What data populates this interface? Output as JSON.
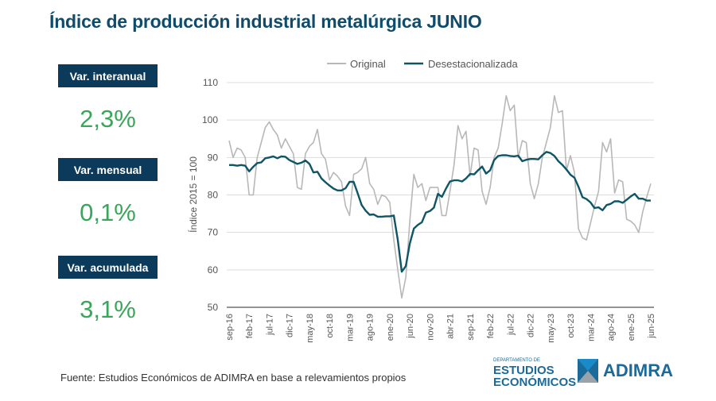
{
  "title": "Índice de producción industrial metalúrgica JUNIO",
  "kpis": [
    {
      "label": "Var. interanual",
      "value": "2,3%"
    },
    {
      "label": "Var. mensual",
      "value": "0,1%"
    },
    {
      "label": "Var. acumulada",
      "value": "3,1%"
    }
  ],
  "source": "Fuente: Estudios Económicos de ADIMRA en base a relevamientos propios",
  "logos": {
    "dept_small": "DEPARTAMENTO DE",
    "dept_line1": "ESTUDIOS",
    "dept_line2": "ECONÓMICOS",
    "brand": "ADIMRA"
  },
  "colors": {
    "original": "#b8b8b8",
    "desestacionalizada": "#0e5566",
    "accent": "#3aa65a",
    "box": "#0c3a5a"
  },
  "chart_data": {
    "type": "line",
    "title": "",
    "ylabel": "Índice 2015 = 100",
    "xlabel": "",
    "ylim": [
      50,
      110
    ],
    "yticks": [
      50,
      60,
      70,
      80,
      90,
      100,
      110
    ],
    "grid": true,
    "legend": "top",
    "x_start": "sep-16",
    "x_end": "jun-25",
    "xtick_labels": [
      "sep-16",
      "feb-17",
      "jul-17",
      "dic-17",
      "may-18",
      "oct-18",
      "mar-19",
      "ago-19",
      "ene-20",
      "jun-20",
      "nov-20",
      "abr-21",
      "sep-21",
      "feb-22",
      "jul-22",
      "dic-22",
      "may-23",
      "oct-23",
      "mar-24",
      "ago-24",
      "ene-25",
      "jun-25"
    ],
    "series": [
      {
        "name": "Original",
        "values": [
          94.5,
          90,
          92.5,
          92,
          90,
          80,
          80,
          90,
          94,
          98,
          99.5,
          97.5,
          96,
          92.5,
          95,
          93,
          91,
          82,
          81.5,
          91,
          93,
          94,
          97.5,
          91,
          89.5,
          84,
          86,
          85,
          83.5,
          77,
          74.5,
          85.5,
          86,
          87,
          90,
          83,
          81.5,
          77.5,
          80,
          79.5,
          78,
          68,
          60,
          52.5,
          58,
          73,
          85.5,
          82,
          83,
          78.5,
          82,
          82,
          82,
          74.5,
          74.5,
          81,
          88,
          98.5,
          95,
          97,
          85,
          92.5,
          92,
          81,
          77.5,
          82,
          90,
          92.5,
          99,
          106.5,
          102.5,
          104,
          90,
          94.5,
          94,
          83,
          79,
          83,
          90,
          94,
          98,
          106.5,
          102,
          102.5,
          86.5,
          90.5,
          86,
          71,
          68.5,
          68,
          72.5,
          77,
          81,
          94,
          91.5,
          95,
          80.5,
          84,
          83.5,
          73.5,
          73,
          72,
          70,
          75.5,
          79.5,
          83
        ]
      },
      {
        "name": "Desestacionalizada",
        "values": [
          88,
          88,
          87.8,
          88,
          87.8,
          86.3,
          87.5,
          88.5,
          88.7,
          89.8,
          90,
          90.3,
          89.8,
          90.3,
          90.2,
          89.3,
          88.8,
          88.3,
          88.6,
          89.2,
          88.3,
          86,
          86.2,
          84.4,
          83.4,
          82.5,
          81.7,
          81.2,
          81.2,
          81.8,
          83.5,
          83.5,
          80.5,
          77.3,
          75.8,
          74.7,
          74.8,
          74.2,
          74.2,
          74.3,
          74.3,
          74.5,
          68,
          59.5,
          61,
          67,
          71,
          72,
          72.7,
          75.3,
          75.7,
          76.6,
          80.3,
          79.5,
          81.7,
          83.6,
          83.9,
          83.9,
          83.6,
          84.4,
          85.6,
          85.5,
          86.6,
          87.6,
          85.7,
          86.6,
          89.3,
          90.4,
          90.6,
          90.6,
          90.4,
          90.3,
          90.5,
          89,
          89.4,
          89.6,
          89.6,
          89.5,
          90.6,
          91.5,
          91.2,
          90.4,
          89,
          88,
          86.8,
          85.4,
          84.6,
          82.2,
          79.4,
          78.9,
          78,
          76.5,
          76.7,
          75.9,
          77.3,
          77.6,
          78.3,
          78.3,
          77.9,
          78.7,
          79.6,
          80.3,
          79,
          79,
          78.5,
          78.5
        ]
      }
    ]
  }
}
